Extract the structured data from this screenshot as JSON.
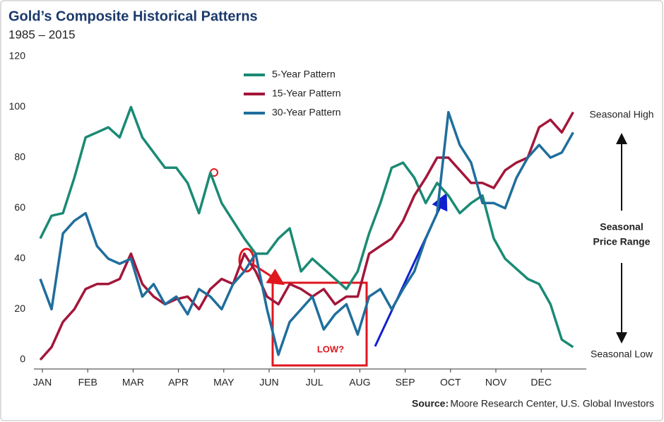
{
  "chart_data": {
    "type": "line",
    "title": "Gold’s Composite Historical Patterns",
    "subtitle": "1985 – 2015",
    "categories": [
      "JAN",
      null,
      null,
      null,
      "FEB",
      null,
      null,
      null,
      "MAR",
      null,
      null,
      null,
      "APR",
      null,
      null,
      null,
      "MAY",
      null,
      null,
      null,
      "JUN",
      null,
      null,
      null,
      "JUL",
      null,
      null,
      null,
      "AUG",
      null,
      null,
      null,
      "SEP",
      null,
      null,
      null,
      "OCT",
      null,
      null,
      null,
      "NOV",
      null,
      null,
      null,
      "DEC",
      null,
      null,
      null
    ],
    "series": [
      {
        "name": "5-Year Pattern",
        "color": "#1a8a74",
        "values": [
          48,
          57,
          58,
          72,
          88,
          90,
          92,
          88,
          100,
          88,
          82,
          76,
          76,
          70,
          58,
          74,
          62,
          55,
          48,
          42,
          42,
          48,
          52,
          35,
          40,
          36,
          32,
          28,
          35,
          50,
          62,
          76,
          78,
          72,
          62,
          70,
          65,
          58,
          62,
          65,
          48,
          40,
          36,
          32,
          30,
          22,
          8,
          5
        ]
      },
      {
        "name": "15-Year Pattern",
        "color": "#a3163a",
        "values": [
          0,
          5,
          15,
          20,
          28,
          30,
          30,
          32,
          42,
          30,
          25,
          22,
          24,
          25,
          20,
          28,
          32,
          30,
          42,
          35,
          25,
          22,
          30,
          28,
          25,
          28,
          22,
          25,
          25,
          42,
          45,
          48,
          55,
          65,
          72,
          80,
          80,
          75,
          70,
          70,
          68,
          75,
          78,
          80,
          92,
          95,
          90,
          98
        ]
      },
      {
        "name": "30-Year Pattern",
        "color": "#1f6e9c",
        "values": [
          32,
          20,
          50,
          55,
          58,
          45,
          40,
          38,
          40,
          25,
          30,
          22,
          25,
          18,
          28,
          25,
          20,
          30,
          35,
          42,
          20,
          2,
          15,
          20,
          25,
          12,
          18,
          22,
          10,
          25,
          28,
          20,
          28,
          35,
          48,
          58,
          98,
          85,
          78,
          62,
          62,
          60,
          72,
          80,
          85,
          80,
          82,
          90
        ]
      }
    ],
    "ylim": [
      0,
      120
    ],
    "yticks": [
      0,
      20,
      40,
      60,
      80,
      100,
      120
    ],
    "grid": false,
    "legend": "top",
    "annotations": {
      "low": "LOW?",
      "high": "Seasonal High",
      "range": [
        "Seasonal",
        "Price Range"
      ],
      "bottom": "Seasonal Low"
    },
    "source_label": "Source:",
    "source": "Moore Research Center, U.S. Global Investors"
  }
}
